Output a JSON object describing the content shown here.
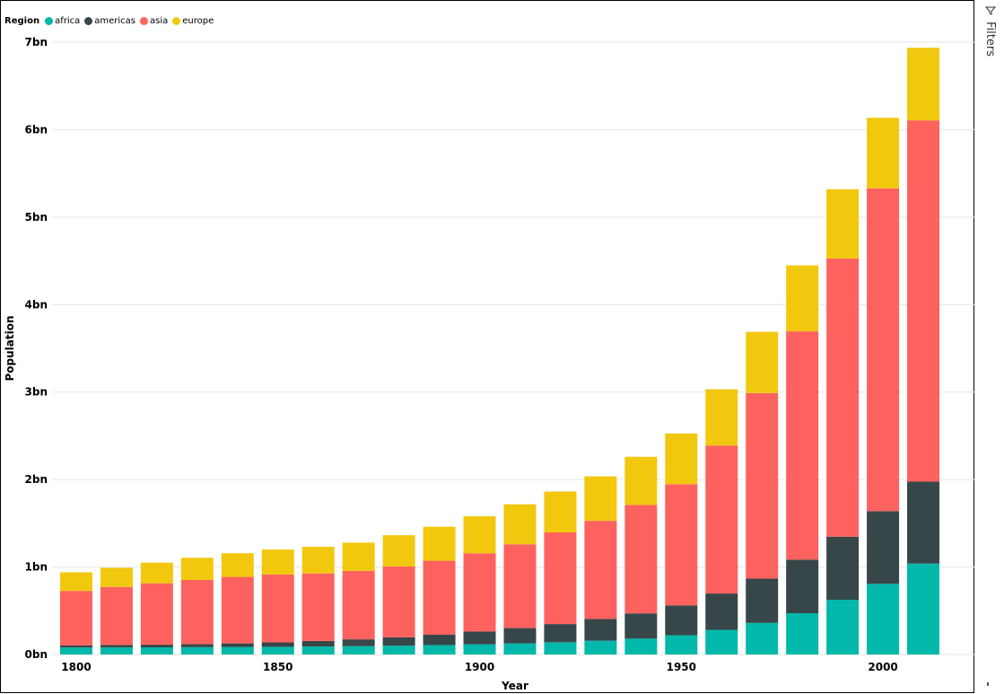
{
  "legend": {
    "title": "Region",
    "items": [
      {
        "label": "africa",
        "color": "#01B8AA"
      },
      {
        "label": "americas",
        "color": "#374649"
      },
      {
        "label": "asia",
        "color": "#FD625E"
      },
      {
        "label": "europe",
        "color": "#F2C80F"
      }
    ]
  },
  "filters": {
    "label": "Filters",
    "icon": "filter-icon"
  },
  "chart_data": {
    "type": "bar",
    "stacked": true,
    "xlabel": "Year",
    "ylabel": "Population",
    "ylim": [
      0,
      7000000000
    ],
    "yticks": [
      {
        "value": 0,
        "label": "0bn"
      },
      {
        "value": 1000000000,
        "label": "1bn"
      },
      {
        "value": 2000000000,
        "label": "2bn"
      },
      {
        "value": 3000000000,
        "label": "3bn"
      },
      {
        "value": 4000000000,
        "label": "4bn"
      },
      {
        "value": 5000000000,
        "label": "5bn"
      },
      {
        "value": 6000000000,
        "label": "6bn"
      },
      {
        "value": 7000000000,
        "label": "7bn"
      }
    ],
    "xticks": [
      {
        "value": 1800,
        "label": "1800"
      },
      {
        "value": 1850,
        "label": "1850"
      },
      {
        "value": 1900,
        "label": "1900"
      },
      {
        "value": 1950,
        "label": "1950"
      },
      {
        "value": 2000,
        "label": "2000"
      }
    ],
    "grid": true,
    "legend_position": "top-left",
    "categories": [
      1800,
      1810,
      1820,
      1830,
      1840,
      1850,
      1860,
      1870,
      1880,
      1890,
      1900,
      1910,
      1920,
      1930,
      1940,
      1950,
      1960,
      1970,
      1980,
      1990,
      2000,
      2010
    ],
    "series": [
      {
        "name": "africa",
        "color": "#01B8AA",
        "values": [
          80000000,
          81000000,
          82000000,
          84000000,
          86000000,
          88000000,
          91000000,
          95000000,
          101000000,
          108000000,
          117000000,
          127000000,
          140000000,
          158000000,
          182000000,
          220000000,
          282000000,
          361000000,
          472000000,
          625000000,
          808000000,
          1040000000
        ]
      },
      {
        "name": "americas",
        "color": "#374649",
        "values": [
          25000000,
          28000000,
          30000000,
          35000000,
          41000000,
          51000000,
          64000000,
          78000000,
          95000000,
          118000000,
          145000000,
          175000000,
          208000000,
          248000000,
          288000000,
          340000000,
          415000000,
          508000000,
          612000000,
          722000000,
          831000000,
          936000000
        ]
      },
      {
        "name": "asia",
        "color": "#FD625E",
        "values": [
          622000000,
          663000000,
          702000000,
          733000000,
          760000000,
          775000000,
          772000000,
          782000000,
          810000000,
          846000000,
          895000000,
          958000000,
          1048000000,
          1122000000,
          1240000000,
          1387000000,
          1692000000,
          2120000000,
          2610000000,
          3180000000,
          3690000000,
          4130000000
        ]
      },
      {
        "name": "europe",
        "color": "#F2C80F",
        "values": [
          213000000,
          219000000,
          236000000,
          254000000,
          271000000,
          286000000,
          305000000,
          324000000,
          358000000,
          389000000,
          423000000,
          457000000,
          467000000,
          508000000,
          550000000,
          580000000,
          643000000,
          700000000,
          755000000,
          792000000,
          807000000,
          830000000
        ]
      }
    ]
  }
}
